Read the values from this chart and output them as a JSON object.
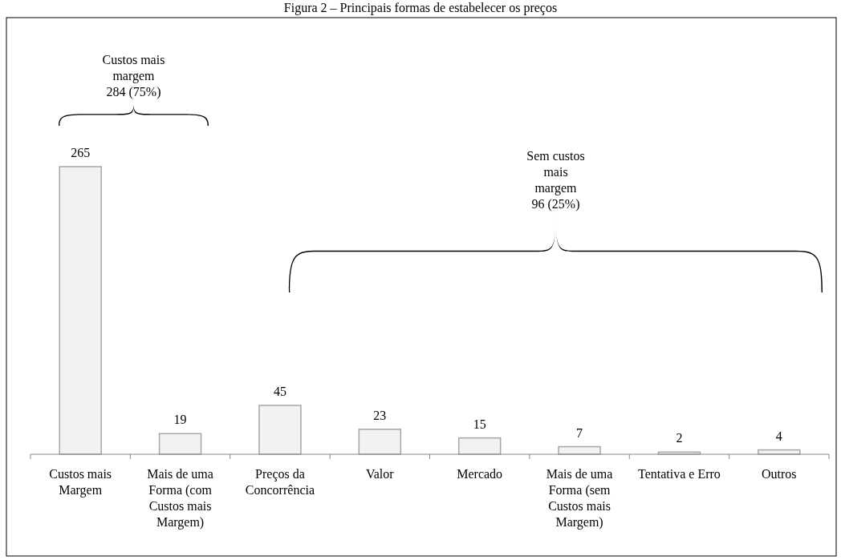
{
  "chart_data": {
    "type": "bar",
    "title": "Figura 2 – Principais formas de estabelecer os preços",
    "categories": [
      "Custos mais Margem",
      "Mais de uma Forma (com Custos mais Margem)",
      "Preços da Concorrência",
      "Valor",
      "Mercado",
      "Mais de uma Forma (sem Custos mais Margem)",
      "Tentativa e Erro",
      "Outros"
    ],
    "values": [
      265,
      19,
      45,
      23,
      15,
      7,
      2,
      4
    ],
    "color": "#f2f2f2",
    "data_labels": true,
    "annotations": [
      "Custos mais\nmargem\n284 (75%)",
      "Sem custos\nmais\nmargem\n96 (25%)"
    ]
  }
}
